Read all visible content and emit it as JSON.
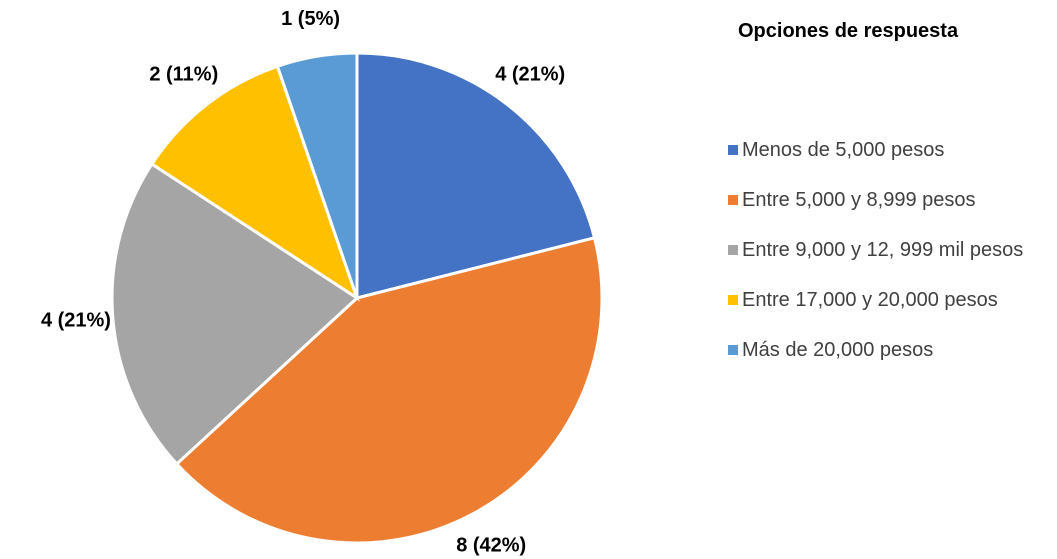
{
  "chart_data": {
    "type": "pie",
    "legend_title": "Opciones de respuesta",
    "categories": [
      "Menos de 5,000 pesos",
      "Entre 5,000 y 8,999 pesos",
      "Entre 9,000 y 12, 999 mil pesos",
      "Entre 17,000 y 20,000 pesos",
      "Más de 20,000 pesos"
    ],
    "values": [
      4,
      8,
      4,
      2,
      1
    ],
    "value_labels": [
      "4 (21%)",
      "8 (42%)",
      "4 (21%)",
      "2 (11%)",
      "1 (5%)"
    ],
    "colors": [
      "#4472c4",
      "#ed7d31",
      "#a5a5a5",
      "#ffc000",
      "#5b9bd5"
    ],
    "legend": "right"
  }
}
